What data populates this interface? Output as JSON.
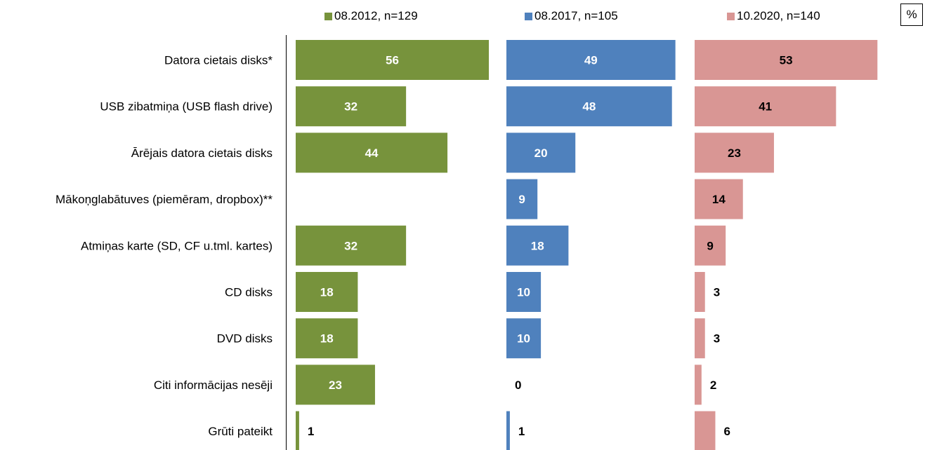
{
  "unit_label": "%",
  "chart_data": {
    "type": "bar",
    "orientation": "horizontal",
    "categories": [
      "Datora cietais disks*",
      "USB zibatmiņa (USB flash drive)",
      "Ārējais datora cietais disks",
      "Mākoņglabātuves (piemēram, dropbox)**",
      "Atmiņas karte (SD, CF u.tml. kartes)",
      "CD disks",
      "DVD disks",
      "Citi informācijas nesēji",
      "Grūti pateikt"
    ],
    "series": [
      {
        "name": "08.2012, n=129",
        "color": "#77933c",
        "values": [
          56,
          32,
          44,
          null,
          32,
          18,
          18,
          23,
          1
        ],
        "labels": [
          "56",
          "32",
          "44",
          "",
          "32",
          "18",
          "18",
          "23",
          "1"
        ]
      },
      {
        "name": "08.2017, n=105",
        "color": "#4f81bd",
        "values": [
          49,
          48,
          20,
          9,
          18,
          10,
          10,
          0,
          1
        ],
        "labels": [
          "49",
          "48",
          "20",
          "9",
          "18",
          "10",
          "10",
          "0",
          "1"
        ]
      },
      {
        "name": "10.2020, n=140",
        "color": "#d99694",
        "values": [
          53,
          41,
          23,
          14,
          9,
          3,
          3,
          2,
          6
        ],
        "labels": [
          "53",
          "41",
          "23",
          "14",
          "9",
          "3",
          "3",
          "2",
          "6"
        ]
      }
    ],
    "xlim": [
      0,
      56
    ],
    "legend_position": "top",
    "grid": false
  }
}
